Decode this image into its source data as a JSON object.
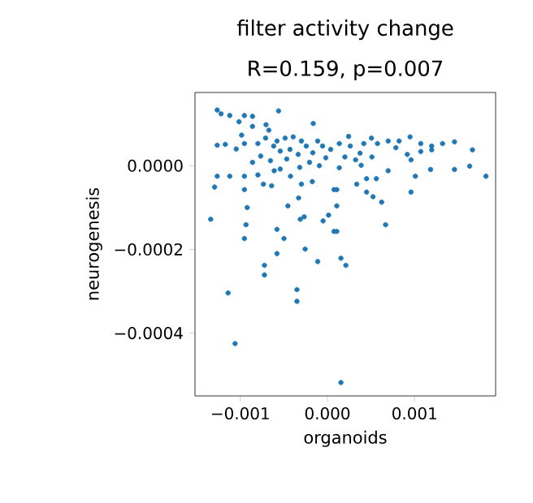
{
  "chart_data": {
    "type": "scatter",
    "title": "filter activity change",
    "subtitle": "R=0.159, p=0.007",
    "xlabel": "organoids",
    "ylabel": "neurogenesis",
    "xlim": [
      -0.00152,
      0.00193
    ],
    "ylim": [
      -0.00055,
      0.000175
    ],
    "xticks": [
      {
        "value": -0.001,
        "label": "−0.001"
      },
      {
        "value": 0,
        "label": "0.000"
      },
      {
        "value": 0.001,
        "label": "0.001"
      }
    ],
    "yticks": [
      {
        "value": -0.0004,
        "label": "−0.0004"
      },
      {
        "value": -0.0002,
        "label": "−0.0002"
      },
      {
        "value": 0,
        "label": "0.0000"
      }
    ],
    "marker": "circle",
    "series": [
      {
        "color": "#1f77b4",
        "x": [
          -0.001265,
          -0.001221,
          -0.001121,
          -0.000953,
          -0.00086,
          -0.000561,
          -0.000163,
          -0.001015,
          -0.00086,
          -0.000705,
          -0.000673,
          -0.001265,
          -0.001172,
          -0.000985,
          -0.000953,
          -0.001047,
          -0.000798,
          -0.000579,
          -0.000486,
          -0.000393,
          -0.000299,
          -0.000112,
          -0.001265,
          -0.001121,
          -0.000953,
          -0.000798,
          -0.000611,
          -0.000424,
          -0.001295,
          -0.000953,
          -0.000735,
          -0.000641,
          -0.000299,
          -0.000174,
          7.5e-05,
          -0.000454,
          -0.000331,
          -0.000921,
          -0.00134,
          -0.000935,
          -0.000312,
          -0.000267,
          -5e-05,
          1.3e-05,
          7.5e-05,
          -0.000579,
          -0.000499,
          -0.000953,
          -0.000256,
          -0.000579,
          0.001458,
          0.001664,
          0.001819,
          0.001632,
          0.001458,
          0.001183,
          0.001009,
          0.000959,
          0.000959,
          0.000622,
          0.000523,
          0.000449,
          0.000336,
          0.000449,
          0.000561,
          0.000697,
          0.000387,
          0.000374,
          0.00051,
          0.000667,
          0.000107,
          0.000107,
          0.000107,
          0.000136,
          0.000262,
          0.000417,
          0.000574,
          0.000697,
          0.000822,
          0.000948,
          0.001071,
          0.001196,
          0.001321,
          0.001196,
          0.001071,
          0.0002,
          0.000323,
          0.000136,
          -0.000723,
          -0.000723,
          -0.000112,
          0.000155,
          0.000211,
          -0.00114,
          -0.00035,
          -0.00035,
          -0.00106,
          0.000155,
          -0.00071,
          -0.000617,
          -0.000542,
          -0.00043,
          -0.000336,
          -0.000243,
          -0.000168,
          -5.6e-05,
          3.7e-05,
          -1.9e-05,
          -0.000206,
          -0.000467,
          -0.000654,
          -0.000766,
          -0.00086,
          -0.000318,
          -0.000542,
          -9.3e-05,
          0.000243,
          0.000505,
          0.000785,
          0.000916
        ],
        "values": [
          0.000133,
          0.000124,
          0.00012,
          0.00012,
          0.000118,
          0.000131,
          0.000101,
          0.000105,
          9.4e-05,
          9.8e-05,
          8.5e-05,
          4.9e-05,
          5.1e-05,
          7.3e-05,
          5.3e-05,
          4e-05,
          5.3e-05,
          5.9e-05,
          6.6e-05,
          6.9e-05,
          5.9e-05,
          5.9e-05,
          -2.5e-05,
          -2.5e-05,
          -2.5e-05,
          -2.2e-05,
          -1.2e-05,
          -2.5e-05,
          -5.1e-05,
          -5.7e-05,
          -4.4e-05,
          -4.8e-05,
          -4.4e-05,
          -3.8e-05,
          -5.7e-05,
          -9.6e-05,
          -7.7e-05,
          -0.0001,
          -0.000128,
          -0.000141,
          -0.000128,
          -0.000122,
          -0.000132,
          -0.000118,
          -0.000157,
          -0.000152,
          -0.000174,
          -0.000174,
          -0.000199,
          -0.00021,
          5.7e-05,
          3.8e-05,
          -2.5e-05,
          -1e-06,
          -9e-06,
          -9e-06,
          -2.5e-05,
          1.4e-05,
          -6.3e-05,
          -8.7e-05,
          -7.4e-05,
          -6.3e-05,
          -4.4e-05,
          -3.1e-05,
          -3.1e-05,
          -1.2e-05,
          1e-06,
          3e-05,
          2.1e-05,
          -0.000141,
          -9.6e-05,
          -0.000157,
          -5.7e-05,
          5.3e-05,
          4.7e-05,
          5.3e-05,
          5.3e-05,
          5.9e-05,
          5.9e-05,
          6.9e-05,
          5.3e-05,
          4.7e-05,
          5.3e-05,
          3.8e-05,
          3.4e-05,
          2.1e-05,
          1.4e-05,
          -5e-06,
          -0.000238,
          -0.000261,
          -0.000229,
          -0.000221,
          -0.000238,
          -0.000304,
          -0.000296,
          -0.000324,
          -0.000425,
          -0.000518,
          6.6e-05,
          4.7e-05,
          3.5e-05,
          3.9e-05,
          2.7e-05,
          4.7e-05,
          3.1e-05,
          4.7e-05,
          3.9e-05,
          1.9e-05,
          8e-06,
          1.6e-05,
          1.2e-05,
          2.3e-05,
          8e-06,
          -4e-06,
          -8e-06,
          0.0,
          7e-05,
          6.6e-05,
          4.3e-05,
          2.7e-05
        ]
      }
    ]
  }
}
